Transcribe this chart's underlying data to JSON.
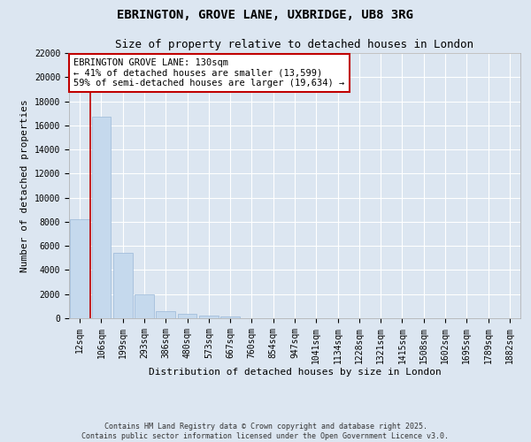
{
  "title": "EBRINGTON, GROVE LANE, UXBRIDGE, UB8 3RG",
  "subtitle": "Size of property relative to detached houses in London",
  "xlabel": "Distribution of detached houses by size in London",
  "ylabel": "Number of detached properties",
  "categories": [
    "12sqm",
    "106sqm",
    "199sqm",
    "293sqm",
    "386sqm",
    "480sqm",
    "573sqm",
    "667sqm",
    "760sqm",
    "854sqm",
    "947sqm",
    "1041sqm",
    "1134sqm",
    "1228sqm",
    "1321sqm",
    "1415sqm",
    "1508sqm",
    "1602sqm",
    "1695sqm",
    "1789sqm",
    "1882sqm"
  ],
  "values": [
    8200,
    16700,
    5400,
    1950,
    620,
    350,
    220,
    150,
    0,
    0,
    0,
    0,
    0,
    0,
    0,
    0,
    0,
    0,
    0,
    0,
    0
  ],
  "bar_color": "#c5d9ed",
  "bar_edge_color": "#9ab8d8",
  "vline_x": 0.5,
  "vline_color": "#c00000",
  "annotation_text": "EBRINGTON GROVE LANE: 130sqm\n← 41% of detached houses are smaller (13,599)\n59% of semi-detached houses are larger (19,634) →",
  "annotation_box_color": "#ffffff",
  "annotation_box_edge": "#c00000",
  "ylim": [
    0,
    22000
  ],
  "yticks": [
    0,
    2000,
    4000,
    6000,
    8000,
    10000,
    12000,
    14000,
    16000,
    18000,
    20000,
    22000
  ],
  "bg_color": "#dce6f1",
  "plot_bg_color": "#dce6f1",
  "title_fontsize": 10,
  "subtitle_fontsize": 9,
  "axis_fontsize": 8,
  "tick_fontsize": 7,
  "footer_text": "Contains HM Land Registry data © Crown copyright and database right 2025.\nContains public sector information licensed under the Open Government Licence v3.0.",
  "grid_color": "#ffffff"
}
